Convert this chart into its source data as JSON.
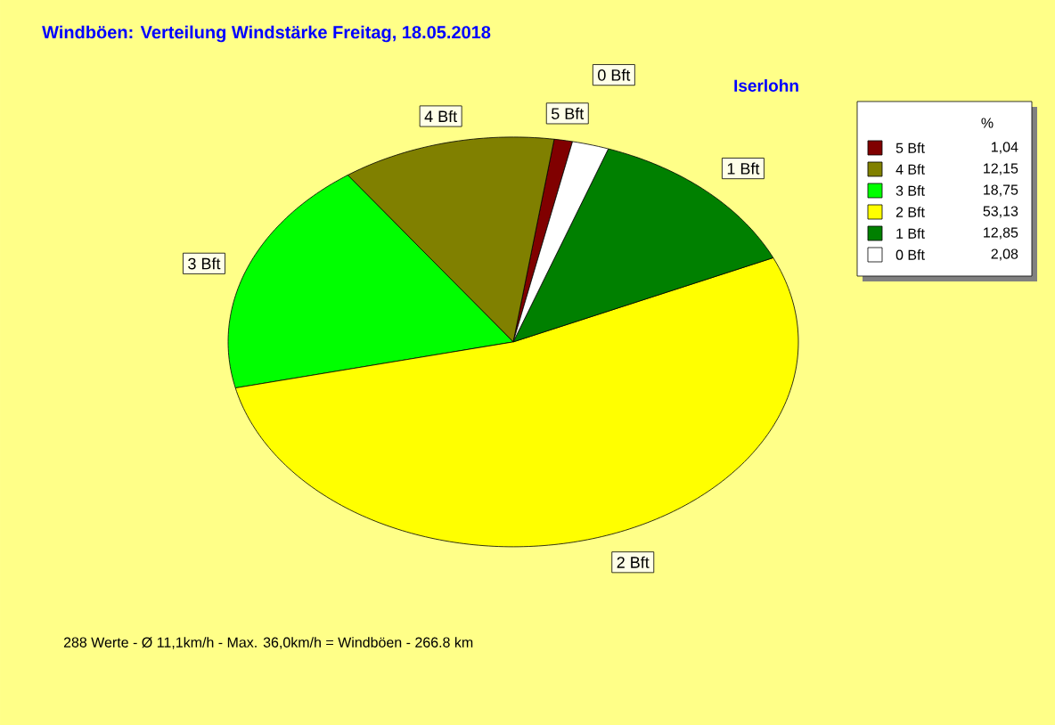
{
  "chart_data": {
    "type": "pie",
    "title": "Windböen: Verteilung Windstärke  Freitag, 18.05.2018",
    "subtitle": "Iserlohn",
    "categories": [
      "5 Bft",
      "4 Bft",
      "3 Bft",
      "2 Bft",
      "1 Bft",
      "0 Bft"
    ],
    "values": [
      1.04,
      12.15,
      18.75,
      53.13,
      12.85,
      2.08
    ],
    "value_labels": [
      "1,04",
      "12,15",
      "18,75",
      "53,13",
      "12,85",
      "2,08"
    ],
    "colors": [
      "#800000",
      "#808000",
      "#00ff00",
      "#ffff00",
      "#008000",
      "#ffffff"
    ],
    "legend": "top right",
    "legend_title": "%",
    "annotations": [
      "288 Werte   -   Ø 11,1km/h  -  Max. 36,0km/h = Windböen   -   266.8 km"
    ]
  }
}
